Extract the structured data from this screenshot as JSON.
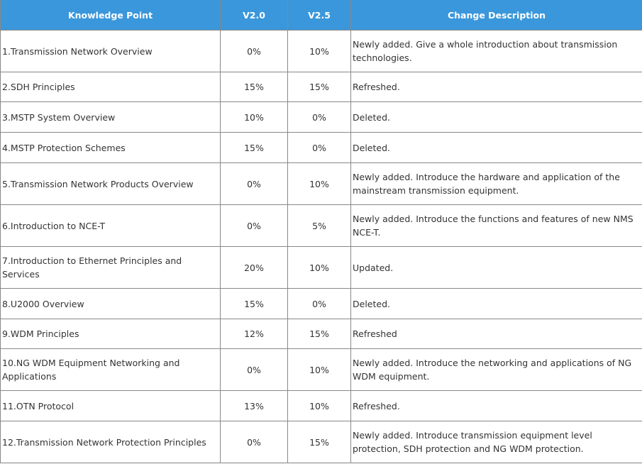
{
  "headers": [
    "Knowledge Point",
    "V2.0",
    "V2.5",
    "Change Description"
  ],
  "rows": [
    {
      "point": "1.Transmission Network Overview",
      "v20": "0%",
      "v25": "10%",
      "desc": "Newly added. Give a whole introduction about transmission technologies."
    },
    {
      "point": "2.SDH Principles",
      "v20": "15%",
      "v25": "15%",
      "desc": "Refreshed."
    },
    {
      "point": "3.MSTP System Overview",
      "v20": "10%",
      "v25": "0%",
      "desc": "Deleted."
    },
    {
      "point": "4.MSTP Protection Schemes",
      "v20": "15%",
      "v25": "0%",
      "desc": "Deleted."
    },
    {
      "point": "5.Transmission Network Products Overview",
      "v20": "0%",
      "v25": "10%",
      "desc": "Newly added. Introduce the hardware and application of the mainstream transmission equipment."
    },
    {
      "point": "6.Introduction to NCE-T",
      "v20": "0%",
      "v25": "5%",
      "desc": "Newly added. Introduce the functions and features of new NMS NCE-T."
    },
    {
      "point": "7.Introduction to Ethernet Principles and Services",
      "v20": "20%",
      "v25": "10%",
      "desc": "Updated."
    },
    {
      "point": "8.U2000 Overview",
      "v20": "15%",
      "v25": "0%",
      "desc": "Deleted."
    },
    {
      "point": "9.WDM Principles",
      "v20": "12%",
      "v25": "15%",
      "desc": "Refreshed"
    },
    {
      "point": "10.NG WDM Equipment Networking and Applications",
      "v20": "0%",
      "v25": "10%",
      "desc": "Newly added. Introduce the networking and applications of NG WDM equipment."
    },
    {
      "point": "11.OTN Protocol",
      "v20": "13%",
      "v25": "10%",
      "desc": "Refreshed."
    },
    {
      "point": "12.Transmission Network Protection Principles",
      "v20": "0%",
      "v25": "15%",
      "desc": "Newly added. Introduce transmission equipment level protection, SDH protection and NG WDM protection."
    }
  ]
}
